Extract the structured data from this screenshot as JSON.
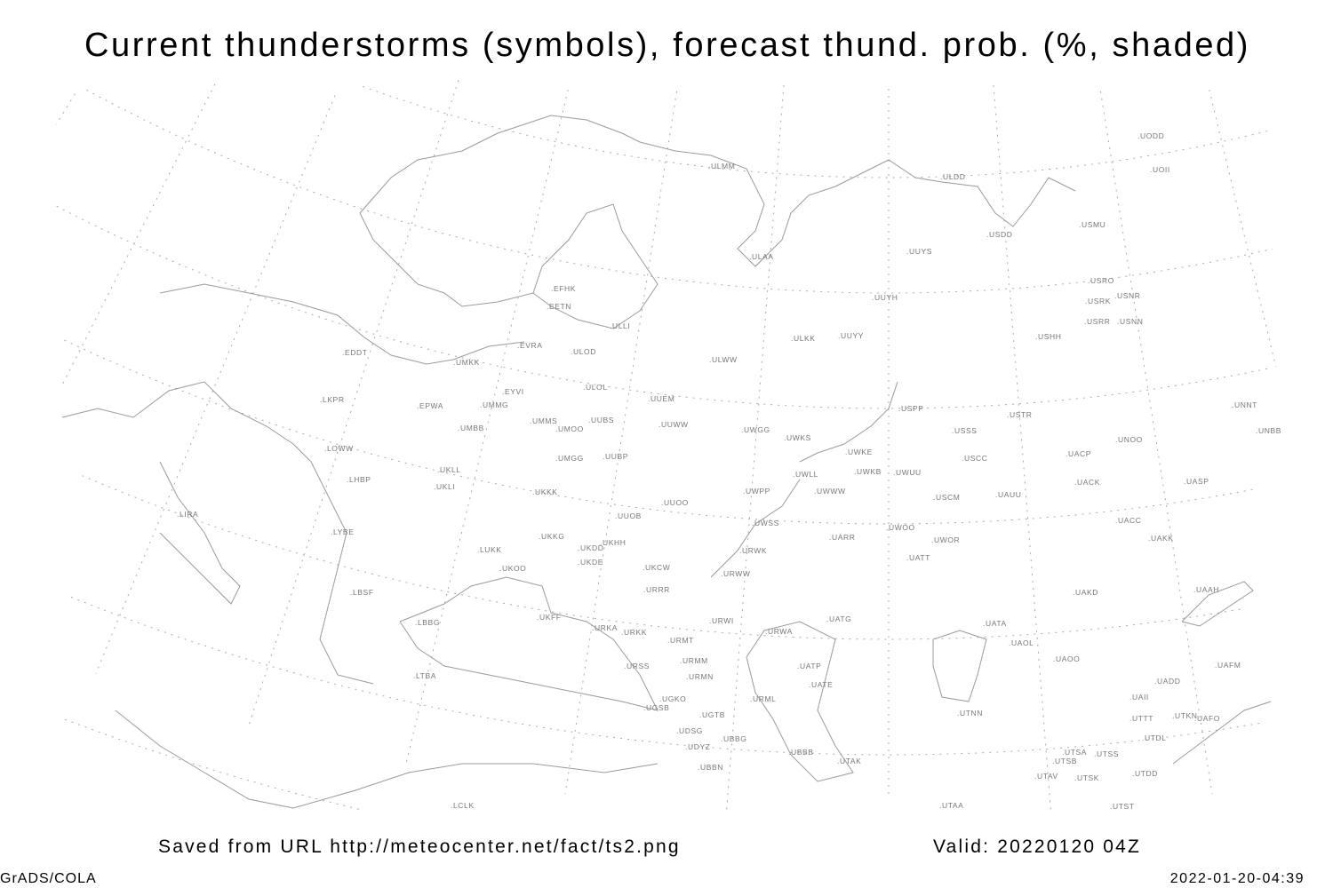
{
  "title": "Current thunderstorms (symbols), forecast thund. prob. (%, shaded)",
  "footer": {
    "saved_from": "Saved from URL http://meteocenter.net/fact/ts2.png",
    "valid": "Valid: 20220120 04Z",
    "credit": "GrADS/COLA",
    "timestamp": "2022-01-20-04:39"
  },
  "colors": {
    "coastline": "#9a9a9a",
    "graticule": "#aaaaaa",
    "station_label": "#777777",
    "text": "#000000"
  },
  "stations": [
    "ULMM",
    "ULDD",
    "UODD",
    "UOII",
    "USMU",
    "USDD",
    "UUYS",
    "ULAA",
    "USRO",
    "USNR",
    "USRK",
    "UUYH",
    "EFHK",
    "EETN",
    "USRR",
    "USNN",
    "ULLI",
    "UUYY",
    "ULKK",
    "USHH",
    "EVRA",
    "EDDT",
    "ULOD",
    "UMKK",
    "ULWW",
    "ULOL",
    "EYVI",
    "UUEM",
    "LKPR",
    "EPWA",
    "UMMG",
    "USPP",
    "USTR",
    "UNNT",
    "UMMS",
    "UMOO",
    "UUBS",
    "UUWW",
    "UMBB",
    "UWGG",
    "USSS",
    "UNBB",
    "UWKS",
    "UNOO",
    "LOWW",
    "UWKE",
    "UACP",
    "UMGG",
    "UUBP",
    "USCC",
    "UKLL",
    "UWKB",
    "UWUU",
    "UWLL",
    "UACK",
    "UASP",
    "UKLI",
    "LHBP",
    "UKKK",
    "UWPP",
    "UWWW",
    "USCM",
    "UAUU",
    "UUOO",
    "LIRA",
    "UUOB",
    "UWSS",
    "UACC",
    "LYBE",
    "UKHH",
    "UKKG",
    "UARR",
    "UWOO",
    "UWOR",
    "UAKK",
    "UKDD",
    "LUKK",
    "URWK",
    "UATT",
    "UKDE",
    "UKOO",
    "UKCW",
    "URWW",
    "LBSF",
    "URRR",
    "UAKD",
    "UAAH",
    "UKFF",
    "URWI",
    "UATG",
    "LBBG",
    "UATA",
    "URKA",
    "URKK",
    "URWA",
    "URMT",
    "UAOL",
    "UAOO",
    "UAFM",
    "URMM",
    "URSS",
    "UATP",
    "URMN",
    "UATE",
    "LTBA",
    "UADD",
    "UAII",
    "UGKO",
    "URML",
    "UGSB",
    "UGTB",
    "UTNN",
    "UTTT",
    "UTKN",
    "UAFO",
    "UDSG",
    "UTDL",
    "UBBG",
    "UDYZ",
    "UTSA",
    "UTSS",
    "UBBB",
    "UTSB",
    "UTAK",
    "UBBN",
    "UTDD",
    "UTAV",
    "UTSK",
    "LCLK",
    "UTAA",
    "UTST"
  ]
}
